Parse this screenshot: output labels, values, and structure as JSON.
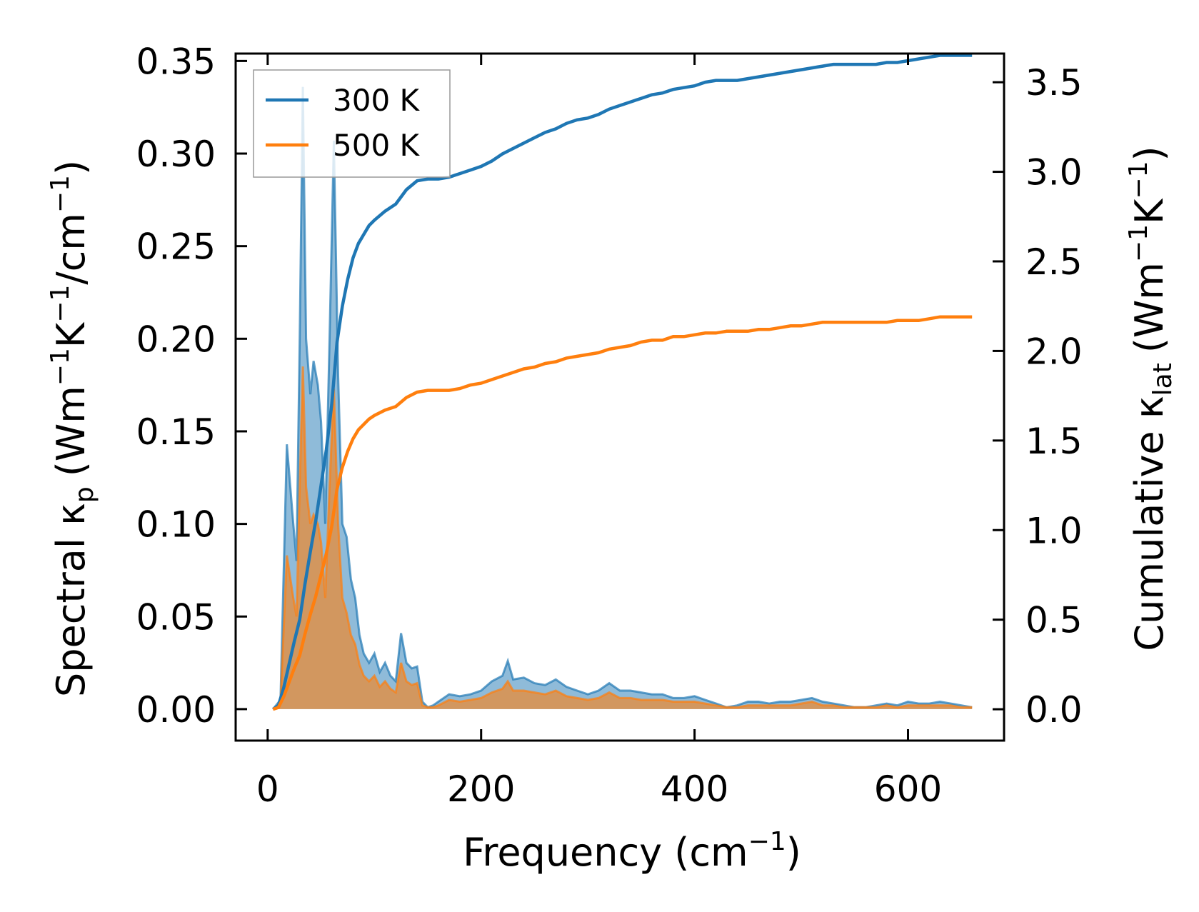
{
  "chart_data": {
    "type": "line",
    "xlabel": "Frequency (cm",
    "xlabel_sup": "−1",
    "xlabel_end": ")",
    "ylabel_left": "Spectral κ",
    "ylabel_left_sub": "p",
    "ylabel_left_unit": "(Wm",
    "ylabel_left_unit_sup1": "−1",
    "ylabel_left_unit_mid": "K",
    "ylabel_left_unit_sup2": "−1",
    "ylabel_left_unit_mid2": "/cm",
    "ylabel_left_unit_sup3": "−1",
    "ylabel_left_unit_end": ")",
    "ylabel_right": "Cumulative κ",
    "ylabel_right_sub": "lat",
    "ylabel_right_unit": "(Wm",
    "ylabel_right_unit_sup1": "−1",
    "ylabel_right_unit_mid": "K",
    "ylabel_right_unit_sup2": "−1",
    "ylabel_right_unit_end": ")",
    "xlim": [
      -30,
      690
    ],
    "ylim_left": [
      -0.017,
      0.354
    ],
    "ylim_right": [
      -0.175,
      3.66
    ],
    "xticks": [
      "0",
      "200",
      "400",
      "600"
    ],
    "xtick_values": [
      0,
      200,
      400,
      600
    ],
    "yticks_left": [
      "0.00",
      "0.05",
      "0.10",
      "0.15",
      "0.20",
      "0.25",
      "0.30",
      "0.35"
    ],
    "ytick_values_left": [
      0,
      0.05,
      0.1,
      0.15,
      0.2,
      0.25,
      0.3,
      0.35
    ],
    "yticks_right": [
      "0.0",
      "0.5",
      "1.0",
      "1.5",
      "2.0",
      "2.5",
      "3.0",
      "3.5"
    ],
    "ytick_values_right": [
      0,
      0.5,
      1,
      1.5,
      2,
      2.5,
      3,
      3.5
    ],
    "legend": {
      "position": "top-left",
      "entries": [
        "300 K",
        "500 K"
      ]
    },
    "colors": {
      "300K": "#1f77b4",
      "500K": "#ff7f0e"
    },
    "spectral": [
      {
        "name": "300 K",
        "x": [
          5,
          12,
          18,
          24,
          27,
          30,
          33,
          36,
          40,
          43,
          47,
          50,
          54,
          58,
          62,
          66,
          70,
          74,
          78,
          82,
          86,
          90,
          95,
          100,
          105,
          110,
          115,
          120,
          125,
          130,
          135,
          140,
          145,
          150,
          155,
          160,
          170,
          180,
          190,
          200,
          210,
          220,
          225,
          230,
          240,
          250,
          260,
          270,
          280,
          290,
          300,
          310,
          320,
          330,
          340,
          350,
          360,
          370,
          380,
          390,
          400,
          410,
          420,
          430,
          440,
          450,
          460,
          470,
          480,
          490,
          500,
          510,
          520,
          530,
          540,
          550,
          560,
          570,
          580,
          590,
          600,
          610,
          620,
          630,
          640,
          650,
          660
        ],
        "y": [
          0,
          0.005,
          0.143,
          0.1,
          0.08,
          0.2,
          0.336,
          0.2,
          0.17,
          0.188,
          0.175,
          0.155,
          0.1,
          0.2,
          0.307,
          0.18,
          0.1,
          0.093,
          0.07,
          0.06,
          0.04,
          0.03,
          0.025,
          0.03,
          0.02,
          0.025,
          0.018,
          0.015,
          0.041,
          0.025,
          0.022,
          0.023,
          0.004,
          0.001,
          0.002,
          0.004,
          0.008,
          0.007,
          0.008,
          0.01,
          0.015,
          0.018,
          0.026,
          0.016,
          0.017,
          0.014,
          0.013,
          0.016,
          0.012,
          0.01,
          0.008,
          0.01,
          0.014,
          0.01,
          0.01,
          0.009,
          0.008,
          0.008,
          0.006,
          0.006,
          0.007,
          0.005,
          0.003,
          0.001,
          0.002,
          0.004,
          0.004,
          0.003,
          0.004,
          0.004,
          0.005,
          0.006,
          0.004,
          0.003,
          0.002,
          0.001,
          0.001,
          0.002,
          0.003,
          0.002,
          0.004,
          0.003,
          0.003,
          0.004,
          0.003,
          0.002,
          0.001
        ]
      },
      {
        "name": "500 K",
        "x": [
          5,
          12,
          18,
          24,
          27,
          30,
          33,
          36,
          40,
          43,
          47,
          50,
          54,
          58,
          62,
          66,
          70,
          74,
          78,
          82,
          86,
          90,
          95,
          100,
          105,
          110,
          115,
          120,
          125,
          130,
          135,
          140,
          145,
          150,
          155,
          160,
          170,
          180,
          190,
          200,
          210,
          220,
          225,
          230,
          240,
          250,
          260,
          270,
          280,
          290,
          300,
          310,
          320,
          330,
          340,
          350,
          360,
          370,
          380,
          390,
          400,
          410,
          420,
          430,
          440,
          450,
          460,
          470,
          480,
          490,
          500,
          510,
          520,
          530,
          540,
          550,
          560,
          570,
          580,
          590,
          600,
          610,
          620,
          630,
          640,
          650,
          660
        ],
        "y": [
          0,
          0.003,
          0.083,
          0.06,
          0.05,
          0.12,
          0.185,
          0.12,
          0.1,
          0.105,
          0.1,
          0.09,
          0.06,
          0.12,
          0.173,
          0.1,
          0.06,
          0.052,
          0.04,
          0.035,
          0.024,
          0.018,
          0.015,
          0.018,
          0.012,
          0.015,
          0.011,
          0.009,
          0.025,
          0.015,
          0.013,
          0.014,
          0.002,
          0.001,
          0.001,
          0.002,
          0.005,
          0.004,
          0.005,
          0.006,
          0.009,
          0.011,
          0.015,
          0.01,
          0.01,
          0.009,
          0.008,
          0.01,
          0.007,
          0.006,
          0.005,
          0.006,
          0.009,
          0.006,
          0.006,
          0.005,
          0.005,
          0.005,
          0.004,
          0.004,
          0.004,
          0.003,
          0.002,
          0.001,
          0.001,
          0.002,
          0.002,
          0.002,
          0.002,
          0.002,
          0.003,
          0.004,
          0.002,
          0.002,
          0.001,
          0.001,
          0.001,
          0.001,
          0.002,
          0.001,
          0.002,
          0.002,
          0.002,
          0.002,
          0.002,
          0.001,
          0.001
        ]
      }
    ],
    "cumulative": [
      {
        "name": "300 K",
        "x": [
          5,
          10,
          15,
          20,
          25,
          30,
          35,
          40,
          45,
          50,
          55,
          60,
          65,
          70,
          75,
          80,
          85,
          90,
          95,
          100,
          110,
          120,
          130,
          140,
          150,
          160,
          170,
          180,
          190,
          200,
          210,
          220,
          230,
          240,
          250,
          260,
          270,
          280,
          290,
          300,
          310,
          320,
          330,
          340,
          350,
          360,
          370,
          380,
          390,
          400,
          410,
          420,
          430,
          440,
          450,
          460,
          470,
          480,
          490,
          500,
          510,
          520,
          530,
          540,
          550,
          560,
          570,
          580,
          590,
          600,
          610,
          620,
          630,
          640,
          650,
          660
        ],
        "y": [
          0,
          0.02,
          0.12,
          0.25,
          0.38,
          0.5,
          0.7,
          0.88,
          1.05,
          1.25,
          1.45,
          1.7,
          2.05,
          2.25,
          2.4,
          2.52,
          2.6,
          2.65,
          2.7,
          2.73,
          2.78,
          2.82,
          2.9,
          2.95,
          2.96,
          2.96,
          2.97,
          2.99,
          3.01,
          3.03,
          3.06,
          3.1,
          3.13,
          3.16,
          3.19,
          3.22,
          3.24,
          3.27,
          3.29,
          3.3,
          3.32,
          3.35,
          3.37,
          3.39,
          3.41,
          3.43,
          3.44,
          3.46,
          3.47,
          3.48,
          3.5,
          3.51,
          3.51,
          3.51,
          3.52,
          3.53,
          3.54,
          3.55,
          3.56,
          3.57,
          3.58,
          3.59,
          3.6,
          3.6,
          3.6,
          3.6,
          3.6,
          3.61,
          3.61,
          3.62,
          3.63,
          3.64,
          3.65,
          3.65,
          3.65,
          3.65
        ]
      },
      {
        "name": "500 K",
        "x": [
          5,
          10,
          15,
          20,
          25,
          30,
          35,
          40,
          45,
          50,
          55,
          60,
          65,
          70,
          75,
          80,
          85,
          90,
          95,
          100,
          110,
          120,
          130,
          140,
          150,
          160,
          170,
          180,
          190,
          200,
          210,
          220,
          230,
          240,
          250,
          260,
          270,
          280,
          290,
          300,
          310,
          320,
          330,
          340,
          350,
          360,
          370,
          380,
          390,
          400,
          410,
          420,
          430,
          440,
          450,
          460,
          470,
          480,
          490,
          500,
          510,
          520,
          530,
          540,
          550,
          560,
          570,
          580,
          590,
          600,
          610,
          620,
          630,
          640,
          650,
          660
        ],
        "y": [
          0,
          0.01,
          0.07,
          0.15,
          0.23,
          0.3,
          0.42,
          0.53,
          0.63,
          0.75,
          0.87,
          1.02,
          1.23,
          1.35,
          1.44,
          1.51,
          1.56,
          1.59,
          1.62,
          1.64,
          1.67,
          1.69,
          1.74,
          1.77,
          1.78,
          1.78,
          1.78,
          1.79,
          1.81,
          1.82,
          1.84,
          1.86,
          1.88,
          1.9,
          1.91,
          1.93,
          1.94,
          1.96,
          1.97,
          1.98,
          1.99,
          2.01,
          2.02,
          2.03,
          2.05,
          2.06,
          2.06,
          2.08,
          2.08,
          2.09,
          2.1,
          2.1,
          2.11,
          2.11,
          2.11,
          2.12,
          2.12,
          2.13,
          2.14,
          2.14,
          2.15,
          2.16,
          2.16,
          2.16,
          2.16,
          2.16,
          2.16,
          2.16,
          2.17,
          2.17,
          2.17,
          2.18,
          2.19,
          2.19,
          2.19,
          2.19
        ]
      }
    ]
  }
}
